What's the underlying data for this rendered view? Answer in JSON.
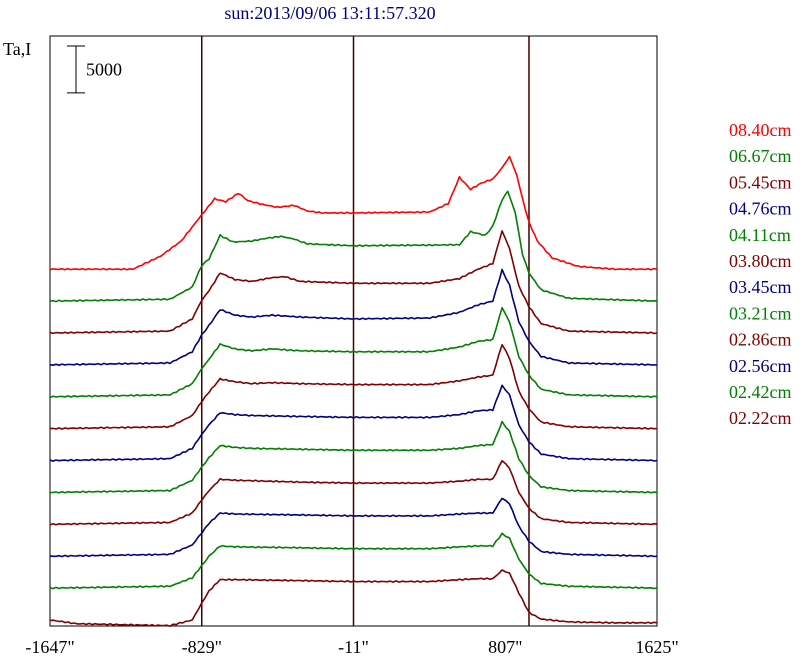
{
  "chart_data": {
    "type": "line",
    "title": "sun:2013/09/06 13:11:57.320",
    "ylabel": "Ta,I",
    "scale_bar": {
      "label": "5000",
      "value": 5000
    },
    "xlim": [
      -1647,
      1625
    ],
    "x_tick_labels": [
      "-1647\"",
      "-829\"",
      "-11\"",
      "807\"",
      "1625\""
    ],
    "x_ticks": [
      -1647,
      -829,
      -11,
      807,
      1625
    ],
    "vertical_lines": [
      -829,
      -11,
      935
    ],
    "offset_step": 3400,
    "series": [
      {
        "name": "08.40cm",
        "color": "#ff0000",
        "offset": 0,
        "profile": [
          [
            -1647,
            0
          ],
          [
            -1200,
            0
          ],
          [
            -1050,
            1400
          ],
          [
            -940,
            3000
          ],
          [
            -880,
            4500
          ],
          [
            -829,
            5800
          ],
          [
            -760,
            7500
          ],
          [
            -700,
            7200
          ],
          [
            -630,
            8100
          ],
          [
            -580,
            7300
          ],
          [
            -500,
            6900
          ],
          [
            -420,
            6600
          ],
          [
            -330,
            6800
          ],
          [
            -260,
            6200
          ],
          [
            -180,
            6000
          ],
          [
            -11,
            6000
          ],
          [
            400,
            6100
          ],
          [
            500,
            7000
          ],
          [
            560,
            9800
          ],
          [
            620,
            8500
          ],
          [
            680,
            9200
          ],
          [
            740,
            9600
          ],
          [
            790,
            10800
          ],
          [
            830,
            12000
          ],
          [
            870,
            10000
          ],
          [
            900,
            7500
          ],
          [
            935,
            5000
          ],
          [
            980,
            3000
          ],
          [
            1060,
            1200
          ],
          [
            1200,
            300
          ],
          [
            1400,
            0
          ],
          [
            1625,
            0
          ]
        ]
      },
      {
        "name": "06.67cm",
        "color": "#008000",
        "offset": 1,
        "profile": [
          [
            -1647,
            0
          ],
          [
            -1000,
            200
          ],
          [
            -880,
            1500
          ],
          [
            -829,
            3800
          ],
          [
            -790,
            4500
          ],
          [
            -730,
            7000
          ],
          [
            -660,
            6300
          ],
          [
            -560,
            6400
          ],
          [
            -480,
            6700
          ],
          [
            -400,
            6900
          ],
          [
            -330,
            6600
          ],
          [
            -260,
            6100
          ],
          [
            -11,
            5900
          ],
          [
            560,
            6000
          ],
          [
            620,
            7400
          ],
          [
            700,
            7000
          ],
          [
            740,
            8000
          ],
          [
            790,
            10800
          ],
          [
            820,
            11700
          ],
          [
            860,
            9500
          ],
          [
            900,
            5000
          ],
          [
            935,
            3000
          ],
          [
            1000,
            1200
          ],
          [
            1150,
            300
          ],
          [
            1625,
            0
          ]
        ]
      },
      {
        "name": "05.45cm",
        "color": "#800000",
        "offset": 2,
        "profile": [
          [
            -1647,
            0
          ],
          [
            -1000,
            200
          ],
          [
            -880,
            1500
          ],
          [
            -829,
            3500
          ],
          [
            -790,
            4500
          ],
          [
            -730,
            6400
          ],
          [
            -650,
            5700
          ],
          [
            -560,
            5500
          ],
          [
            -450,
            5900
          ],
          [
            -380,
            6000
          ],
          [
            -300,
            5500
          ],
          [
            -11,
            5300
          ],
          [
            400,
            5300
          ],
          [
            560,
            5800
          ],
          [
            660,
            6800
          ],
          [
            740,
            7400
          ],
          [
            790,
            10900
          ],
          [
            830,
            9000
          ],
          [
            880,
            5000
          ],
          [
            935,
            2800
          ],
          [
            1000,
            1000
          ],
          [
            1150,
            200
          ],
          [
            1625,
            0
          ]
        ]
      },
      {
        "name": "04.76cm",
        "color": "#000080",
        "offset": 3,
        "profile": [
          [
            -1647,
            0
          ],
          [
            -1000,
            200
          ],
          [
            -880,
            1400
          ],
          [
            -829,
            3200
          ],
          [
            -790,
            4200
          ],
          [
            -730,
            5900
          ],
          [
            -650,
            5300
          ],
          [
            -560,
            5100
          ],
          [
            -450,
            5300
          ],
          [
            -300,
            5100
          ],
          [
            -11,
            4900
          ],
          [
            400,
            5000
          ],
          [
            560,
            5600
          ],
          [
            660,
            6400
          ],
          [
            740,
            6800
          ],
          [
            790,
            10100
          ],
          [
            830,
            8500
          ],
          [
            880,
            4600
          ],
          [
            935,
            2500
          ],
          [
            1000,
            900
          ],
          [
            1150,
            200
          ],
          [
            1625,
            0
          ]
        ]
      },
      {
        "name": "04.11cm",
        "color": "#008000",
        "offset": 4,
        "profile": [
          [
            -1647,
            0
          ],
          [
            -1000,
            200
          ],
          [
            -880,
            1400
          ],
          [
            -829,
            3000
          ],
          [
            -790,
            4000
          ],
          [
            -730,
            5600
          ],
          [
            -650,
            5100
          ],
          [
            -560,
            4900
          ],
          [
            -450,
            5100
          ],
          [
            -300,
            4900
          ],
          [
            -11,
            4800
          ],
          [
            400,
            4800
          ],
          [
            560,
            5300
          ],
          [
            660,
            5900
          ],
          [
            740,
            6100
          ],
          [
            790,
            9500
          ],
          [
            830,
            8000
          ],
          [
            880,
            4300
          ],
          [
            935,
            2300
          ],
          [
            1000,
            800
          ],
          [
            1150,
            200
          ],
          [
            1625,
            0
          ]
        ]
      },
      {
        "name": "03.80cm",
        "color": "#800000",
        "offset": 5,
        "profile": [
          [
            -1647,
            0
          ],
          [
            -1000,
            200
          ],
          [
            -880,
            1400
          ],
          [
            -829,
            2900
          ],
          [
            -790,
            3900
          ],
          [
            -730,
            5300
          ],
          [
            -650,
            5000
          ],
          [
            -560,
            4800
          ],
          [
            -450,
            4900
          ],
          [
            -300,
            4800
          ],
          [
            -11,
            4700
          ],
          [
            400,
            4700
          ],
          [
            560,
            5100
          ],
          [
            660,
            5500
          ],
          [
            740,
            5700
          ],
          [
            790,
            9000
          ],
          [
            830,
            7500
          ],
          [
            880,
            4000
          ],
          [
            935,
            2100
          ],
          [
            1000,
            700
          ],
          [
            1150,
            200
          ],
          [
            1625,
            0
          ]
        ]
      },
      {
        "name": "03.45cm",
        "color": "#000080",
        "offset": 6,
        "profile": [
          [
            -1647,
            0
          ],
          [
            -1000,
            200
          ],
          [
            -880,
            1300
          ],
          [
            -829,
            2800
          ],
          [
            -790,
            3800
          ],
          [
            -730,
            5100
          ],
          [
            -650,
            4900
          ],
          [
            -560,
            4800
          ],
          [
            -300,
            4700
          ],
          [
            -11,
            4600
          ],
          [
            400,
            4600
          ],
          [
            560,
            4900
          ],
          [
            660,
            5300
          ],
          [
            740,
            5400
          ],
          [
            790,
            8000
          ],
          [
            830,
            7000
          ],
          [
            880,
            3800
          ],
          [
            935,
            2000
          ],
          [
            1000,
            700
          ],
          [
            1150,
            200
          ],
          [
            1625,
            0
          ]
        ]
      },
      {
        "name": "03.21cm",
        "color": "#008000",
        "offset": 7,
        "profile": [
          [
            -1647,
            0
          ],
          [
            -1000,
            200
          ],
          [
            -880,
            1300
          ],
          [
            -829,
            2700
          ],
          [
            -790,
            3700
          ],
          [
            -730,
            5000
          ],
          [
            -650,
            4800
          ],
          [
            -560,
            4700
          ],
          [
            -300,
            4600
          ],
          [
            -11,
            4500
          ],
          [
            400,
            4500
          ],
          [
            560,
            4700
          ],
          [
            660,
            5000
          ],
          [
            740,
            5100
          ],
          [
            790,
            7500
          ],
          [
            830,
            6500
          ],
          [
            880,
            3600
          ],
          [
            935,
            1800
          ],
          [
            1000,
            600
          ],
          [
            1150,
            200
          ],
          [
            1625,
            0
          ]
        ]
      },
      {
        "name": "02.86cm",
        "color": "#800000",
        "offset": 8,
        "profile": [
          [
            -1647,
            0
          ],
          [
            -1000,
            200
          ],
          [
            -880,
            1200
          ],
          [
            -829,
            2600
          ],
          [
            -790,
            3600
          ],
          [
            -730,
            4800
          ],
          [
            -650,
            4700
          ],
          [
            -300,
            4500
          ],
          [
            -11,
            4400
          ],
          [
            400,
            4400
          ],
          [
            560,
            4600
          ],
          [
            660,
            4800
          ],
          [
            740,
            4800
          ],
          [
            790,
            6800
          ],
          [
            830,
            6000
          ],
          [
            880,
            3400
          ],
          [
            935,
            1700
          ],
          [
            1000,
            600
          ],
          [
            1150,
            200
          ],
          [
            1625,
            0
          ]
        ]
      },
      {
        "name": "02.56cm",
        "color": "#000080",
        "offset": 9,
        "profile": [
          [
            -1647,
            0
          ],
          [
            -1000,
            200
          ],
          [
            -880,
            1200
          ],
          [
            -829,
            2500
          ],
          [
            -790,
            3500
          ],
          [
            -730,
            4600
          ],
          [
            -650,
            4500
          ],
          [
            -300,
            4400
          ],
          [
            -11,
            4300
          ],
          [
            400,
            4300
          ],
          [
            560,
            4500
          ],
          [
            660,
            4600
          ],
          [
            740,
            4600
          ],
          [
            790,
            6200
          ],
          [
            830,
            5600
          ],
          [
            880,
            3200
          ],
          [
            935,
            1600
          ],
          [
            1000,
            500
          ],
          [
            1150,
            200
          ],
          [
            1625,
            0
          ]
        ]
      },
      {
        "name": "02.42cm",
        "color": "#008000",
        "offset": 10,
        "profile": [
          [
            -1647,
            0
          ],
          [
            -1000,
            200
          ],
          [
            -880,
            1100
          ],
          [
            -829,
            2400
          ],
          [
            -790,
            3400
          ],
          [
            -730,
            4500
          ],
          [
            -650,
            4400
          ],
          [
            -300,
            4300
          ],
          [
            -11,
            4200
          ],
          [
            400,
            4200
          ],
          [
            560,
            4400
          ],
          [
            660,
            4500
          ],
          [
            740,
            4500
          ],
          [
            790,
            5800
          ],
          [
            830,
            5300
          ],
          [
            880,
            3100
          ],
          [
            935,
            1500
          ],
          [
            1000,
            500
          ],
          [
            1150,
            200
          ],
          [
            1625,
            0
          ]
        ]
      },
      {
        "name": "02.22cm",
        "color": "#800000",
        "offset": 11,
        "profile": [
          [
            -1647,
            0
          ],
          [
            -1500,
            -400
          ],
          [
            -1000,
            -600
          ],
          [
            -880,
            0
          ],
          [
            -829,
            1800
          ],
          [
            -790,
            3100
          ],
          [
            -730,
            4300
          ],
          [
            -650,
            4300
          ],
          [
            -300,
            4200
          ],
          [
            -11,
            4100
          ],
          [
            400,
            4100
          ],
          [
            560,
            4300
          ],
          [
            660,
            4400
          ],
          [
            740,
            4400
          ],
          [
            790,
            5300
          ],
          [
            830,
            5000
          ],
          [
            880,
            2900
          ],
          [
            935,
            800
          ],
          [
            1000,
            100
          ],
          [
            1150,
            -200
          ],
          [
            1400,
            -300
          ],
          [
            1625,
            -300
          ]
        ]
      }
    ]
  }
}
